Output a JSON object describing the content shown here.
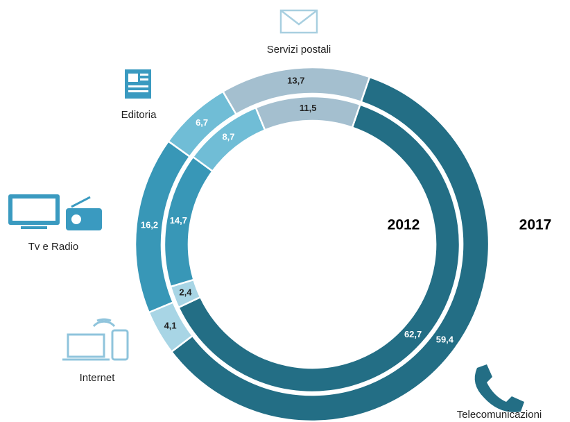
{
  "chart_data": {
    "type": "donut",
    "categories": [
      "Telecomunicazioni",
      "Internet",
      "Tv e Radio",
      "Editoria",
      "Servizi postali"
    ],
    "colors": [
      "#236e85",
      "#a8d5e5",
      "#3897b7",
      "#70bdd6",
      "#a4bfcf"
    ],
    "series": [
      {
        "name": "2012",
        "values": [
          62.7,
          2.4,
          14.7,
          8.7,
          11.5
        ],
        "value_labels": [
          "62,7",
          "2,4",
          "14,7",
          "8,7",
          "11,5"
        ]
      },
      {
        "name": "2017",
        "values": [
          59.4,
          4.1,
          16.2,
          6.7,
          13.7
        ],
        "value_labels": [
          "59,4",
          "4,1",
          "16,2",
          "6,7",
          "13,7"
        ]
      }
    ]
  }
}
